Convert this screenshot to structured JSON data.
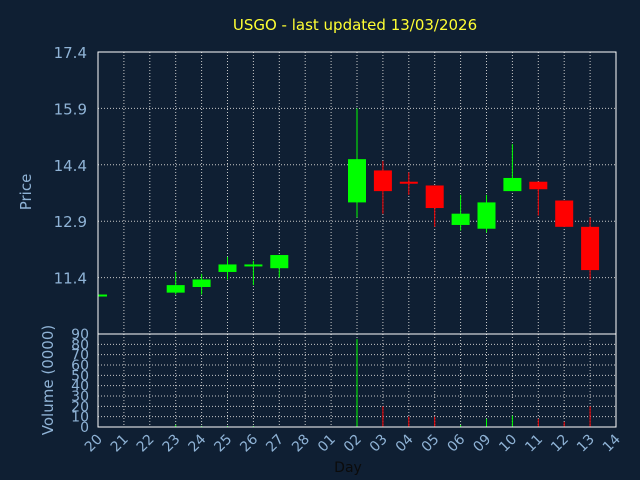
{
  "chart_data": {
    "type": "candlestick",
    "title": "USGO - last updated 13/03/2026",
    "xlabel": "Day",
    "ylabel": "Price",
    "volume_label": "Volume (0000)",
    "price_ylim": [
      9.9,
      17.4
    ],
    "price_ticks": [
      "17.4",
      "15.9",
      "14.4",
      "12.9",
      "11.4"
    ],
    "volume_ylim": [
      0,
      90
    ],
    "volume_ticks": [
      "90",
      "80",
      "70",
      "60",
      "50",
      "40",
      "30",
      "20",
      "10",
      "0"
    ],
    "grid": true,
    "colors": {
      "up": "#00ff00",
      "down": "#ff0000",
      "background": "#0f1f33",
      "title": "#ffff33",
      "axis_text": "#8fb3d6",
      "grid": "#c8c8c8"
    },
    "days": [
      "20",
      "21",
      "22",
      "23",
      "24",
      "25",
      "26",
      "27",
      "28",
      "01",
      "02",
      "03",
      "04",
      "05",
      "06",
      "09",
      "10",
      "11",
      "12",
      "13",
      "14"
    ],
    "candles": [
      {
        "day": "20",
        "open": 10.95,
        "high": 10.95,
        "low": 10.95,
        "close": 10.95,
        "volume": 0
      },
      {
        "day": "23",
        "open": 11.0,
        "high": 11.55,
        "low": 10.95,
        "close": 11.2,
        "volume": 2
      },
      {
        "day": "24",
        "open": 11.15,
        "high": 11.5,
        "low": 10.95,
        "close": 11.35,
        "volume": 1
      },
      {
        "day": "25",
        "open": 11.55,
        "high": 11.95,
        "low": 11.35,
        "close": 11.75,
        "volume": 1
      },
      {
        "day": "26",
        "open": 11.7,
        "high": 11.85,
        "low": 11.2,
        "close": 11.75,
        "volume": 1
      },
      {
        "day": "27",
        "open": 11.65,
        "high": 12.0,
        "low": 11.4,
        "close": 12.0,
        "volume": 0
      },
      {
        "day": "02",
        "open": 13.4,
        "high": 15.9,
        "low": 13.0,
        "close": 14.55,
        "volume": 85
      },
      {
        "day": "03",
        "open": 14.25,
        "high": 14.5,
        "low": 13.1,
        "close": 13.7,
        "volume": 20
      },
      {
        "day": "04",
        "open": 13.95,
        "high": 14.2,
        "low": 13.6,
        "close": 13.9,
        "volume": 10
      },
      {
        "day": "05",
        "open": 13.85,
        "high": 13.85,
        "low": 12.75,
        "close": 13.25,
        "volume": 10
      },
      {
        "day": "06",
        "open": 12.8,
        "high": 13.6,
        "low": 12.65,
        "close": 13.1,
        "volume": 2
      },
      {
        "day": "09",
        "open": 12.7,
        "high": 13.6,
        "low": 12.6,
        "close": 13.4,
        "volume": 8
      },
      {
        "day": "10",
        "open": 13.7,
        "high": 14.95,
        "low": 13.7,
        "close": 14.05,
        "volume": 11
      },
      {
        "day": "11",
        "open": 13.95,
        "high": 13.95,
        "low": 13.05,
        "close": 13.75,
        "volume": 8
      },
      {
        "day": "12",
        "open": 13.45,
        "high": 13.45,
        "low": 12.75,
        "close": 12.75,
        "volume": 5
      },
      {
        "day": "13",
        "open": 12.75,
        "high": 13.0,
        "low": 11.35,
        "close": 11.6,
        "volume": 20
      }
    ]
  }
}
